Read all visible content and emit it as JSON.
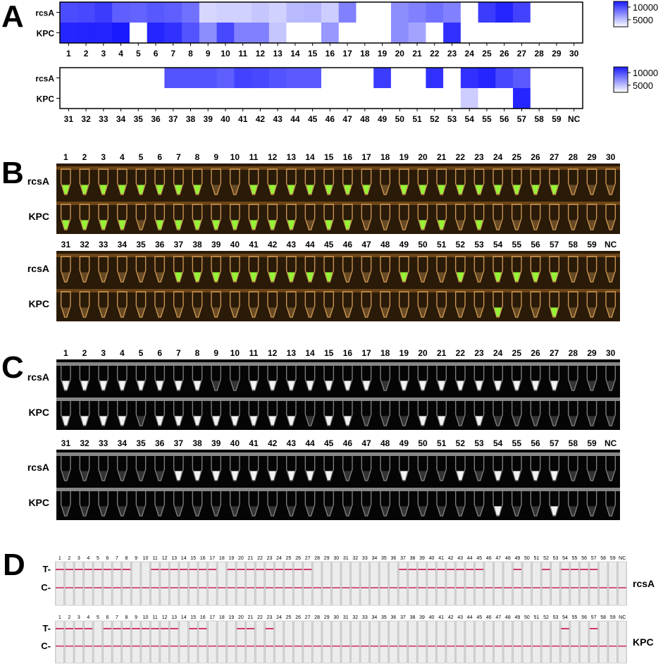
{
  "panels": {
    "a": {
      "letter": "A"
    },
    "b": {
      "letter": "B"
    },
    "c": {
      "letter": "C"
    },
    "d": {
      "letter": "D"
    }
  },
  "targets": [
    "rcsA",
    "KPC"
  ],
  "heatmap": {
    "colors": {
      "high": "#1a1aff",
      "low": "#ffffff",
      "border": "#000000"
    },
    "scale_ticks": [
      "10000",
      "5000"
    ],
    "rows": [
      {
        "columns": [
          "1",
          "2",
          "3",
          "4",
          "5",
          "6",
          "7",
          "8",
          "9",
          "10",
          "11",
          "12",
          "13",
          "14",
          "15",
          "16",
          "17",
          "18",
          "19",
          "20",
          "21",
          "22",
          "23",
          "24",
          "25",
          "26",
          "27",
          "28",
          "29",
          "30"
        ],
        "rcsA": [
          0.78,
          0.8,
          0.85,
          0.7,
          0.68,
          0.73,
          0.7,
          0.62,
          0.18,
          0.2,
          0.2,
          0.25,
          0.2,
          0.3,
          0.32,
          0.22,
          0.55,
          0,
          0,
          0.5,
          0.55,
          0.62,
          0.55,
          0,
          0.85,
          0.95,
          0.82,
          0,
          0,
          0
        ],
        "KPC": [
          0.95,
          0.96,
          0.96,
          1,
          0,
          0.95,
          0.9,
          0.75,
          0.5,
          0.8,
          0.55,
          0.55,
          0.25,
          0,
          0,
          0.45,
          0,
          0,
          0,
          0.5,
          0.4,
          0,
          0.9,
          0,
          0,
          0,
          0,
          0,
          0,
          0
        ]
      },
      {
        "columns": [
          "31",
          "32",
          "33",
          "34",
          "35",
          "36",
          "37",
          "38",
          "39",
          "40",
          "41",
          "42",
          "43",
          "44",
          "45",
          "46",
          "47",
          "48",
          "49",
          "50",
          "51",
          "52",
          "53",
          "54",
          "55",
          "56",
          "57",
          "58",
          "59",
          "NC"
        ],
        "rcsA": [
          0,
          0,
          0,
          0,
          0,
          0,
          0.75,
          0.75,
          0.75,
          0.7,
          0.82,
          0.8,
          0.75,
          0.72,
          0.72,
          0,
          0,
          0,
          0.85,
          0,
          0,
          0.9,
          0,
          0.9,
          0.95,
          0.8,
          0.72,
          0,
          0,
          0
        ],
        "KPC": [
          0,
          0,
          0,
          0,
          0,
          0,
          0,
          0,
          0,
          0,
          0,
          0,
          0,
          0,
          0,
          0,
          0,
          0,
          0,
          0,
          0,
          0,
          0,
          0.22,
          0,
          0,
          0.95,
          0,
          0,
          0
        ]
      }
    ]
  },
  "fluorescence": {
    "colors": {
      "background": "#2a1a08",
      "tube": "#d9a25a",
      "positive": "#9cff3a"
    },
    "rows": [
      {
        "columns": [
          "1",
          "2",
          "3",
          "4",
          "5",
          "6",
          "7",
          "8",
          "9",
          "10",
          "11",
          "12",
          "13",
          "14",
          "15",
          "16",
          "17",
          "18",
          "19",
          "20",
          "21",
          "22",
          "23",
          "24",
          "25",
          "26",
          "27",
          "28",
          "29",
          "30"
        ],
        "rcsA": [
          1,
          1,
          1,
          1,
          1,
          1,
          1,
          1,
          0,
          0,
          1,
          1,
          1,
          1,
          1,
          1,
          1,
          0,
          1,
          1,
          1,
          1,
          1,
          1,
          1,
          1,
          1,
          0,
          0,
          0
        ],
        "KPC": [
          1,
          1,
          1,
          1,
          0,
          1,
          1,
          1,
          1,
          1,
          1,
          1,
          1,
          0,
          1,
          1,
          0,
          0,
          0,
          1,
          1,
          0,
          1,
          0,
          0,
          0,
          0,
          0,
          0,
          0
        ]
      },
      {
        "columns": [
          "31",
          "32",
          "33",
          "34",
          "35",
          "36",
          "37",
          "38",
          "39",
          "40",
          "41",
          "42",
          "43",
          "44",
          "45",
          "46",
          "47",
          "48",
          "49",
          "50",
          "51",
          "52",
          "53",
          "54",
          "55",
          "56",
          "57",
          "58",
          "59",
          "NC"
        ],
        "rcsA": [
          0,
          0,
          0,
          0,
          0,
          0,
          1,
          1,
          1,
          1,
          1,
          1,
          1,
          1,
          1,
          0,
          0,
          0,
          1,
          0,
          0,
          1,
          0,
          1,
          1,
          1,
          1,
          0,
          0,
          0
        ],
        "KPC": [
          0,
          0,
          0,
          0,
          0,
          0,
          0,
          0,
          0,
          0,
          0,
          0,
          0,
          0,
          0,
          0,
          0,
          0,
          0,
          0,
          0,
          0,
          0,
          1,
          0,
          0,
          1,
          0,
          0,
          0
        ]
      }
    ]
  },
  "uv": {
    "colors": {
      "background": "#050505",
      "tube": "#8a8a8a",
      "positive": "#ffffff"
    },
    "rows": [
      {
        "columns": [
          "1",
          "2",
          "3",
          "4",
          "5",
          "6",
          "7",
          "8",
          "9",
          "10",
          "11",
          "12",
          "13",
          "14",
          "15",
          "16",
          "17",
          "18",
          "19",
          "20",
          "21",
          "22",
          "23",
          "24",
          "25",
          "26",
          "27",
          "28",
          "29",
          "30"
        ],
        "rcsA": [
          1,
          1,
          1,
          1,
          1,
          1,
          1,
          1,
          0,
          0,
          1,
          1,
          1,
          1,
          1,
          1,
          1,
          0,
          1,
          1,
          1,
          1,
          1,
          1,
          1,
          1,
          1,
          0,
          0,
          0
        ],
        "KPC": [
          1,
          1,
          1,
          1,
          0,
          1,
          1,
          1,
          1,
          1,
          1,
          1,
          1,
          0,
          1,
          1,
          0,
          0,
          0,
          1,
          1,
          0,
          1,
          0,
          0,
          0,
          0,
          0,
          0,
          0
        ]
      },
      {
        "columns": [
          "31",
          "32",
          "33",
          "34",
          "35",
          "36",
          "37",
          "38",
          "39",
          "40",
          "41",
          "42",
          "43",
          "44",
          "45",
          "46",
          "47",
          "48",
          "49",
          "50",
          "51",
          "52",
          "53",
          "54",
          "55",
          "56",
          "57",
          "58",
          "59",
          "NC"
        ],
        "rcsA": [
          0,
          0,
          0,
          0,
          0,
          0,
          1,
          1,
          1,
          1,
          1,
          1,
          1,
          1,
          1,
          0,
          0,
          0,
          1,
          0,
          0,
          1,
          0,
          1,
          1,
          1,
          1,
          0,
          0,
          0
        ],
        "KPC": [
          0,
          0,
          0,
          0,
          0,
          0,
          0,
          0,
          0,
          0,
          0,
          0,
          0,
          0,
          0,
          0,
          0,
          0,
          0,
          0,
          0,
          0,
          0,
          1,
          0,
          0,
          1,
          0,
          0,
          0
        ]
      }
    ]
  },
  "strips": {
    "line_labels": [
      "T-",
      "C-"
    ],
    "colors": {
      "strip": "#ececec",
      "line": "#d03a6a"
    },
    "columns": [
      "1",
      "2",
      "3",
      "4",
      "5",
      "6",
      "7",
      "8",
      "9",
      "10",
      "11",
      "12",
      "13",
      "14",
      "15",
      "16",
      "17",
      "18",
      "19",
      "20",
      "21",
      "22",
      "23",
      "24",
      "25",
      "26",
      "27",
      "28",
      "29",
      "30",
      "31",
      "32",
      "33",
      "34",
      "35",
      "36",
      "37",
      "38",
      "39",
      "40",
      "41",
      "42",
      "43",
      "44",
      "45",
      "46",
      "47",
      "48",
      "49",
      "50",
      "51",
      "52",
      "53",
      "54",
      "55",
      "56",
      "57",
      "58",
      "59",
      "NC"
    ],
    "rcsA_T": [
      1,
      1,
      1,
      1,
      1,
      1,
      1,
      1,
      0,
      0,
      1,
      1,
      1,
      1,
      1,
      1,
      1,
      0,
      1,
      1,
      1,
      1,
      1,
      1,
      1,
      1,
      1,
      0,
      0,
      0,
      0,
      0,
      0,
      0,
      0,
      0,
      1,
      1,
      1,
      1,
      1,
      1,
      1,
      1,
      1,
      0,
      0,
      0,
      1,
      0,
      0,
      1,
      0,
      1,
      1,
      1,
      1,
      0,
      0,
      0
    ],
    "KPC_T": [
      1,
      1,
      1,
      1,
      0,
      1,
      1,
      1,
      1,
      1,
      1,
      1,
      1,
      0,
      1,
      1,
      0,
      0,
      0,
      1,
      1,
      0,
      1,
      0,
      0,
      0,
      0,
      0,
      0,
      0,
      0,
      0,
      0,
      0,
      0,
      0,
      0,
      0,
      0,
      0,
      0,
      0,
      0,
      0,
      0,
      0,
      0,
      0,
      0,
      0,
      0,
      0,
      0,
      1,
      0,
      0,
      1,
      0,
      0,
      0
    ]
  }
}
